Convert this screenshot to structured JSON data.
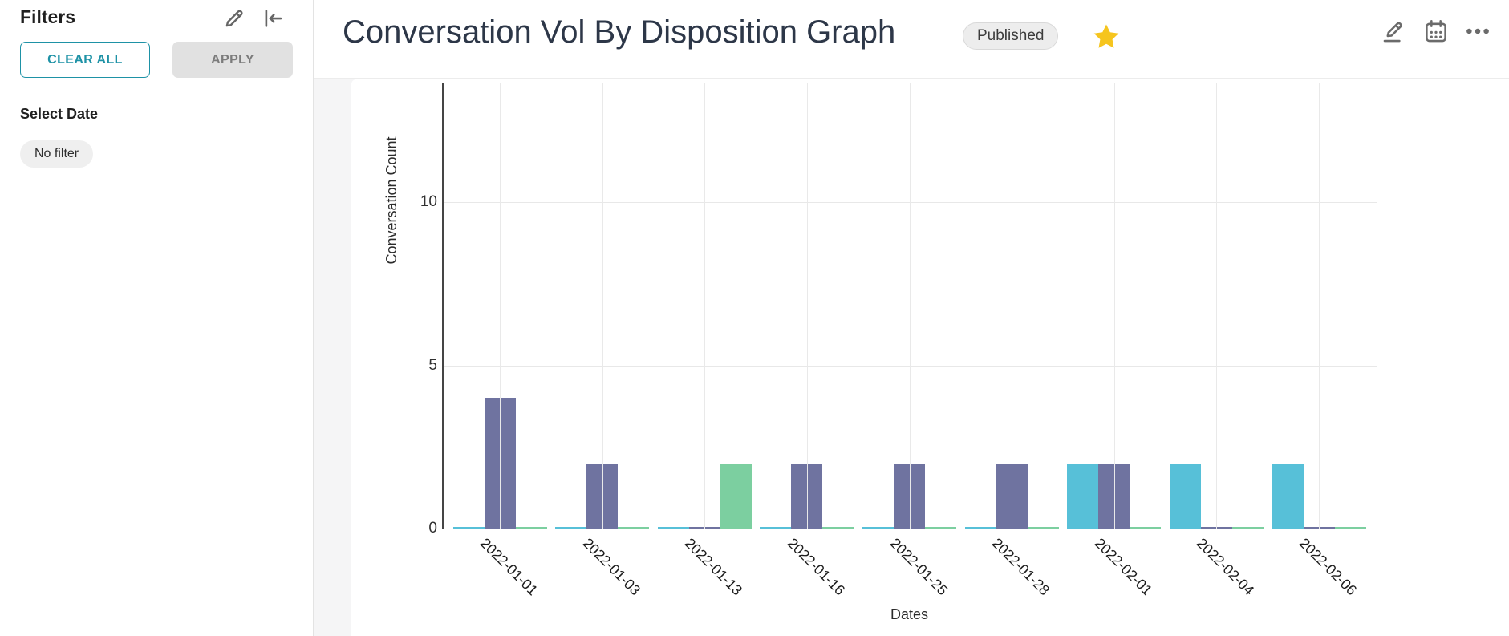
{
  "sidebar": {
    "title": "Filters",
    "clear_all_label": "CLEAR ALL",
    "apply_label": "APPLY",
    "select_date_label": "Select Date",
    "date_filter_chip": "No filter"
  },
  "header": {
    "title": "Conversation Vol By Disposition Graph",
    "status_badge": "Published"
  },
  "icons": {
    "sidebar_edit": "pencil-icon",
    "sidebar_collapse": "collapse-left-icon",
    "favorite": "star-icon",
    "edit": "pencil-underline-icon",
    "schedule": "calendar-icon",
    "more": "ellipsis-icon"
  },
  "colors": {
    "accent_teal": "#1E92A6",
    "star_gold": "#F6C51E",
    "grid": "#E8E8E8",
    "axis": "#454545"
  },
  "chart_data": {
    "type": "bar",
    "title": "Conversation Vol By Disposition Graph",
    "xlabel": "Dates",
    "ylabel": "Conversation Count",
    "categories": [
      "2022-01-01",
      "2022-01-03",
      "2022-01-13",
      "2022-01-16",
      "2022-01-25",
      "2022-01-28",
      "2022-02-01",
      "2022-02-04",
      "2022-02-06"
    ],
    "series": [
      {
        "name": "series-teal",
        "color": "#57C0D8",
        "values": [
          0,
          0,
          0,
          0,
          0,
          0,
          2,
          2,
          2
        ]
      },
      {
        "name": "series-purple",
        "color": "#6F73A0",
        "values": [
          4,
          2,
          0,
          2,
          2,
          2,
          2,
          0,
          0
        ]
      },
      {
        "name": "series-green",
        "color": "#7CCFA0",
        "values": [
          0,
          0,
          2,
          0,
          0,
          0,
          0,
          0,
          0
        ]
      }
    ],
    "yticks": [
      0,
      5,
      10
    ],
    "ylim": [
      0,
      13.7
    ],
    "grid": true,
    "legend": "none"
  }
}
